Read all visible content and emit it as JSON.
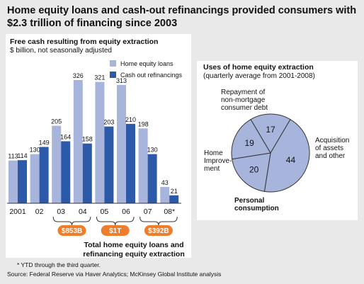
{
  "title": "Home equity loans and cash-out refinancings provided consumers with $2.3 trillion of financing since 2003",
  "left_chart": {
    "subtitle": "Free cash resulting from equity extraction",
    "unit_note": "$ billion, not seasonally adjusted"
  },
  "right_chart": {
    "title": "Uses of home equity extraction",
    "subtitle": "(quarterly average from 2001-2008)"
  },
  "totals": {
    "labels": [
      "$853B",
      "$1T",
      "$392B"
    ],
    "caption_line1": "Total home equity loans and",
    "caption_line2": "refinancing equity extraction"
  },
  "footnote": "*   YTD through the third quarter.",
  "source": "Source:   Federal Reserve via Haver Analytics; McKinsey Global Institute analysis",
  "colors": {
    "light": "#a7b5dd",
    "dark": "#2c5aa8",
    "orange": "#f07d2c",
    "pie": "#a7b5dd"
  },
  "chart_data": [
    {
      "type": "bar",
      "categories": [
        "2001",
        "02",
        "03",
        "04",
        "05",
        "06",
        "07",
        "08*"
      ],
      "series": [
        {
          "name": "Home equity loans",
          "values": [
            113,
            130,
            205,
            326,
            321,
            313,
            198,
            43
          ]
        },
        {
          "name": "Cash out refinancings",
          "values": [
            114,
            149,
            164,
            158,
            203,
            210,
            130,
            21
          ]
        }
      ],
      "ylim": [
        0,
        340
      ],
      "legend": "top-right"
    },
    {
      "type": "pie",
      "labels": [
        "Repayment of non-mortgage consumer debt",
        "Acquisition of assets and other",
        "Personal consumption",
        "Home Improve-ment"
      ],
      "values": [
        17,
        44,
        20,
        19
      ]
    }
  ]
}
